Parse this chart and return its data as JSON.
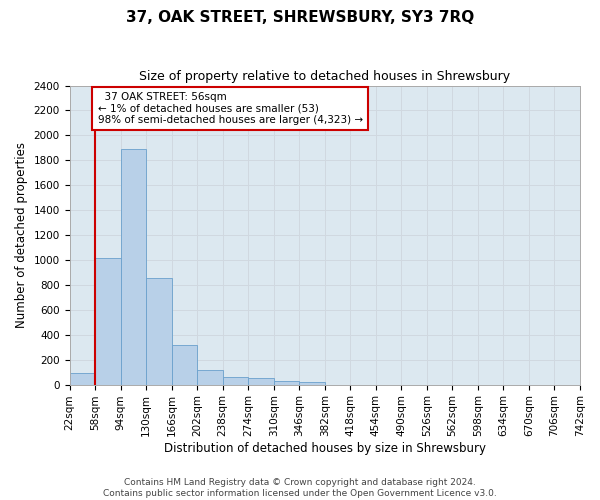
{
  "title": "37, OAK STREET, SHREWSBURY, SY3 7RQ",
  "subtitle": "Size of property relative to detached houses in Shrewsbury",
  "xlabel": "Distribution of detached houses by size in Shrewsbury",
  "ylabel": "Number of detached properties",
  "bar_values": [
    95,
    1020,
    1890,
    855,
    315,
    120,
    58,
    50,
    32,
    20,
    0,
    0,
    0,
    0,
    0,
    0,
    0,
    0,
    0,
    0
  ],
  "bin_labels": [
    "22sqm",
    "58sqm",
    "94sqm",
    "130sqm",
    "166sqm",
    "202sqm",
    "238sqm",
    "274sqm",
    "310sqm",
    "346sqm",
    "382sqm",
    "418sqm",
    "454sqm",
    "490sqm",
    "526sqm",
    "562sqm",
    "598sqm",
    "634sqm",
    "670sqm",
    "706sqm",
    "742sqm"
  ],
  "bar_color": "#b8d0e8",
  "bar_edge_color": "#6aa0cc",
  "property_line_x": 1,
  "property_line_color": "#cc0000",
  "annotation_text": "  37 OAK STREET: 56sqm\n← 1% of detached houses are smaller (53)\n98% of semi-detached houses are larger (4,323) →",
  "annotation_box_color": "#cc0000",
  "annotation_fontsize": 7.5,
  "ylim": [
    0,
    2400
  ],
  "yticks": [
    0,
    200,
    400,
    600,
    800,
    1000,
    1200,
    1400,
    1600,
    1800,
    2000,
    2200,
    2400
  ],
  "grid_color": "#d0d8e0",
  "background_color": "#dce8f0",
  "footer_text": "Contains HM Land Registry data © Crown copyright and database right 2024.\nContains public sector information licensed under the Open Government Licence v3.0.",
  "title_fontsize": 11,
  "subtitle_fontsize": 9,
  "xlabel_fontsize": 8.5,
  "ylabel_fontsize": 8.5,
  "tick_fontsize": 7.5,
  "footer_fontsize": 6.5
}
